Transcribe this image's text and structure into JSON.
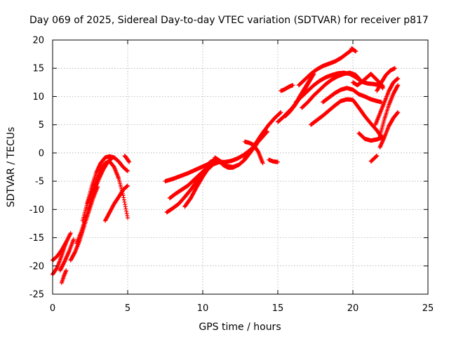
{
  "chart_data": {
    "type": "scatter",
    "title": "Day 069 of 2025, Sidereal Day-to-day VTEC variation (SDTVAR) for receiver p817",
    "xlabel": "GPS time / hours",
    "ylabel": "SDTVAR / TECUs",
    "xlim": [
      0,
      25
    ],
    "ylim": [
      -25,
      20
    ],
    "xticks": [
      "0",
      "5",
      "10",
      "15",
      "20",
      "25"
    ],
    "yticks": [
      "20",
      "15",
      "10",
      "5",
      "0",
      "-5",
      "-10",
      "-15",
      "-20",
      "-25"
    ],
    "grid": true,
    "marker": "+",
    "color": "#ff0000",
    "series": [
      {
        "x": [
          0.0,
          0.3,
          0.6,
          0.9,
          1.2
        ],
        "y": [
          -19.0,
          -18.3,
          -17.2,
          -15.8,
          -14.2
        ]
      },
      {
        "x": [
          0.0,
          0.3,
          0.6,
          0.9
        ],
        "y": [
          -21.5,
          -20.3,
          -18.2,
          -15.8
        ]
      },
      {
        "x": [
          0.5,
          0.8,
          1.1,
          1.4
        ],
        "y": [
          -20.8,
          -19.2,
          -17.4,
          -15.3
        ]
      },
      {
        "x": [
          0.6,
          0.75,
          0.9
        ],
        "y": [
          -23.0,
          -21.8,
          -20.8
        ]
      },
      {
        "x": [
          1.2,
          1.5,
          1.8,
          2.1,
          2.4,
          2.7,
          3.0
        ],
        "y": [
          -19.0,
          -17.5,
          -15.5,
          -13.0,
          -10.5,
          -8.0,
          -6.0
        ]
      },
      {
        "x": [
          1.6,
          1.9,
          2.2,
          2.5,
          2.8,
          3.1,
          3.4,
          3.7,
          4.0
        ],
        "y": [
          -16.0,
          -14.0,
          -11.5,
          -9.0,
          -6.5,
          -4.5,
          -2.8,
          -1.5,
          -0.8
        ]
      },
      {
        "x": [
          2.0,
          2.3,
          2.6,
          2.9,
          3.2,
          3.5,
          3.8,
          4.1,
          4.4,
          4.7,
          5.0
        ],
        "y": [
          -12.0,
          -9.0,
          -6.0,
          -3.5,
          -1.8,
          -0.8,
          -0.6,
          -0.8,
          -1.5,
          -2.5,
          -3.2
        ]
      },
      {
        "x": [
          2.3,
          2.6,
          2.9,
          3.2,
          3.5,
          3.8,
          4.1,
          4.4,
          4.7,
          5.0
        ],
        "y": [
          -9.0,
          -7.0,
          -5.0,
          -3.0,
          -1.8,
          -1.5,
          -2.5,
          -4.5,
          -7.5,
          -11.5
        ]
      },
      {
        "x": [
          3.5,
          3.8,
          4.1,
          4.4,
          4.7,
          5.0
        ],
        "y": [
          -12.0,
          -10.5,
          -9.0,
          -7.8,
          -6.5,
          -5.8
        ]
      },
      {
        "x": [
          4.8,
          4.95,
          5.1
        ],
        "y": [
          -0.5,
          -1.0,
          -1.6
        ]
      },
      {
        "x": [
          7.5,
          8.0,
          8.5,
          9.0,
          9.5,
          10.0,
          10.5
        ],
        "y": [
          -5.0,
          -4.6,
          -4.1,
          -3.6,
          -3.0,
          -2.4,
          -1.8
        ]
      },
      {
        "x": [
          7.6,
          8.0,
          8.4,
          8.8,
          9.2,
          9.6,
          10.0,
          10.4
        ],
        "y": [
          -10.5,
          -9.8,
          -9.0,
          -7.8,
          -6.5,
          -5.0,
          -3.6,
          -2.4
        ]
      },
      {
        "x": [
          7.8,
          8.2,
          8.6,
          9.0,
          9.4,
          9.8,
          10.2
        ],
        "y": [
          -8.0,
          -7.2,
          -6.5,
          -5.8,
          -4.8,
          -3.8,
          -2.8
        ]
      },
      {
        "x": [
          8.8,
          9.2,
          9.6,
          10.0,
          10.4
        ],
        "y": [
          -9.5,
          -8.0,
          -6.0,
          -4.2,
          -2.6
        ]
      },
      {
        "x": [
          9.5,
          9.9,
          10.3,
          10.7,
          11.1,
          11.5,
          11.9,
          12.3,
          12.7,
          13.1,
          13.5,
          13.9,
          14.3
        ],
        "y": [
          -5.5,
          -4.2,
          -3.0,
          -2.0,
          -1.6,
          -1.6,
          -1.4,
          -1.0,
          -0.4,
          0.4,
          1.4,
          2.6,
          3.8
        ]
      },
      {
        "x": [
          10.2,
          10.5,
          10.8,
          11.1,
          11.4,
          11.7,
          12.0,
          12.3
        ],
        "y": [
          -2.4,
          -1.6,
          -1.2,
          -1.5,
          -2.2,
          -2.6,
          -2.6,
          -2.2
        ]
      },
      {
        "x": [
          10.8,
          11.2,
          11.6,
          12.0,
          12.4,
          12.8,
          13.2,
          13.6
        ],
        "y": [
          -0.8,
          -1.5,
          -2.3,
          -2.5,
          -2.1,
          -1.2,
          0.2,
          1.6
        ]
      },
      {
        "x": [
          12.8,
          13.2,
          13.6,
          14.0,
          14.4,
          14.8,
          15.2
        ],
        "y": [
          -1.0,
          0.4,
          2.0,
          3.6,
          5.0,
          6.2,
          7.2
        ]
      },
      {
        "x": [
          12.8,
          13.1,
          13.4,
          13.7,
          14.0
        ],
        "y": [
          2.0,
          1.8,
          1.4,
          0.2,
          -1.8
        ]
      },
      {
        "x": [
          14.4,
          14.7,
          15.0
        ],
        "y": [
          -1.2,
          -1.5,
          -1.6
        ]
      },
      {
        "x": [
          15.0,
          15.3,
          15.6,
          15.9,
          16.2,
          16.5,
          16.8,
          17.1,
          17.4
        ],
        "y": [
          5.5,
          6.2,
          7.0,
          7.8,
          8.8,
          10.2,
          11.5,
          12.8,
          14.0
        ]
      },
      {
        "x": [
          15.5,
          15.8,
          16.1,
          16.4,
          16.7,
          17.0,
          17.3
        ],
        "y": [
          6.5,
          7.3,
          8.3,
          9.5,
          10.8,
          12.2,
          13.6
        ]
      },
      {
        "x": [
          15.2,
          15.4,
          15.6,
          15.8,
          16.0
        ],
        "y": [
          11.0,
          11.2,
          11.5,
          11.8,
          12.0
        ]
      },
      {
        "x": [
          16.4,
          16.8,
          17.2,
          17.6,
          18.0,
          18.4,
          18.8,
          19.2,
          19.6,
          20.0
        ],
        "y": [
          12.0,
          13.0,
          14.0,
          14.8,
          15.4,
          15.8,
          16.2,
          16.8,
          17.6,
          18.4
        ]
      },
      {
        "x": [
          16.2,
          16.6,
          17.0,
          17.4,
          17.8,
          18.2,
          18.6,
          19.0,
          19.4,
          19.8,
          20.2,
          20.6,
          21.0,
          21.4,
          21.8,
          22.0
        ],
        "y": [
          9.0,
          10.0,
          11.0,
          12.0,
          12.8,
          13.4,
          13.8,
          14.1,
          14.2,
          14.0,
          13.4,
          12.6,
          12.3,
          12.2,
          12.0,
          11.5
        ]
      },
      {
        "x": [
          16.6,
          17.0,
          17.4,
          17.8,
          18.2,
          18.6,
          19.0,
          19.4,
          19.8,
          20.2,
          20.6
        ],
        "y": [
          8.0,
          9.0,
          10.2,
          11.2,
          12.2,
          13.0,
          13.6,
          14.0,
          14.2,
          13.8,
          12.6
        ]
      },
      {
        "x": [
          17.2,
          17.6,
          18.0,
          18.4,
          18.8,
          19.2,
          19.6,
          20.0,
          20.4,
          20.8,
          21.2,
          21.6,
          22.0
        ],
        "y": [
          5.0,
          5.8,
          6.6,
          7.5,
          8.4,
          9.2,
          9.5,
          9.4,
          8.0,
          6.5,
          5.2,
          4.0,
          2.5
        ]
      },
      {
        "x": [
          18.0,
          18.4,
          18.8,
          19.2,
          19.6,
          20.0,
          20.4,
          20.8,
          21.2,
          21.6,
          21.9
        ],
        "y": [
          9.0,
          9.8,
          10.6,
          11.2,
          11.5,
          11.2,
          10.4,
          10.0,
          9.5,
          9.2,
          9.0
        ]
      },
      {
        "x": [
          19.9,
          20.2
        ],
        "y": [
          18.5,
          18.0
        ]
      },
      {
        "x": [
          20.0,
          20.3,
          20.6,
          20.9,
          21.2,
          21.5,
          21.8,
          22.0
        ],
        "y": [
          12.5,
          12.0,
          12.6,
          13.3,
          14.0,
          13.2,
          12.4,
          11.8
        ]
      },
      {
        "x": [
          20.4,
          20.8,
          21.2,
          21.6,
          22.0
        ],
        "y": [
          3.5,
          2.5,
          2.2,
          2.4,
          2.8
        ]
      },
      {
        "x": [
          21.2,
          21.4,
          21.6
        ],
        "y": [
          -1.5,
          -1.0,
          -0.5
        ]
      },
      {
        "x": [
          21.5,
          21.8,
          22.1,
          22.4,
          22.7,
          23.0
        ],
        "y": [
          5.0,
          7.0,
          9.0,
          11.0,
          12.5,
          13.2
        ]
      },
      {
        "x": [
          21.6,
          21.9,
          22.2,
          22.5,
          22.8
        ],
        "y": [
          11.0,
          12.5,
          13.8,
          14.6,
          15.0
        ]
      },
      {
        "x": [
          21.8,
          22.1,
          22.4,
          22.7,
          23.0
        ],
        "y": [
          3.0,
          6.0,
          8.5,
          10.5,
          12.0
        ]
      },
      {
        "x": [
          21.8,
          22.1,
          22.4,
          22.7,
          23.0
        ],
        "y": [
          1.0,
          2.8,
          4.8,
          6.2,
          7.2
        ]
      }
    ]
  }
}
